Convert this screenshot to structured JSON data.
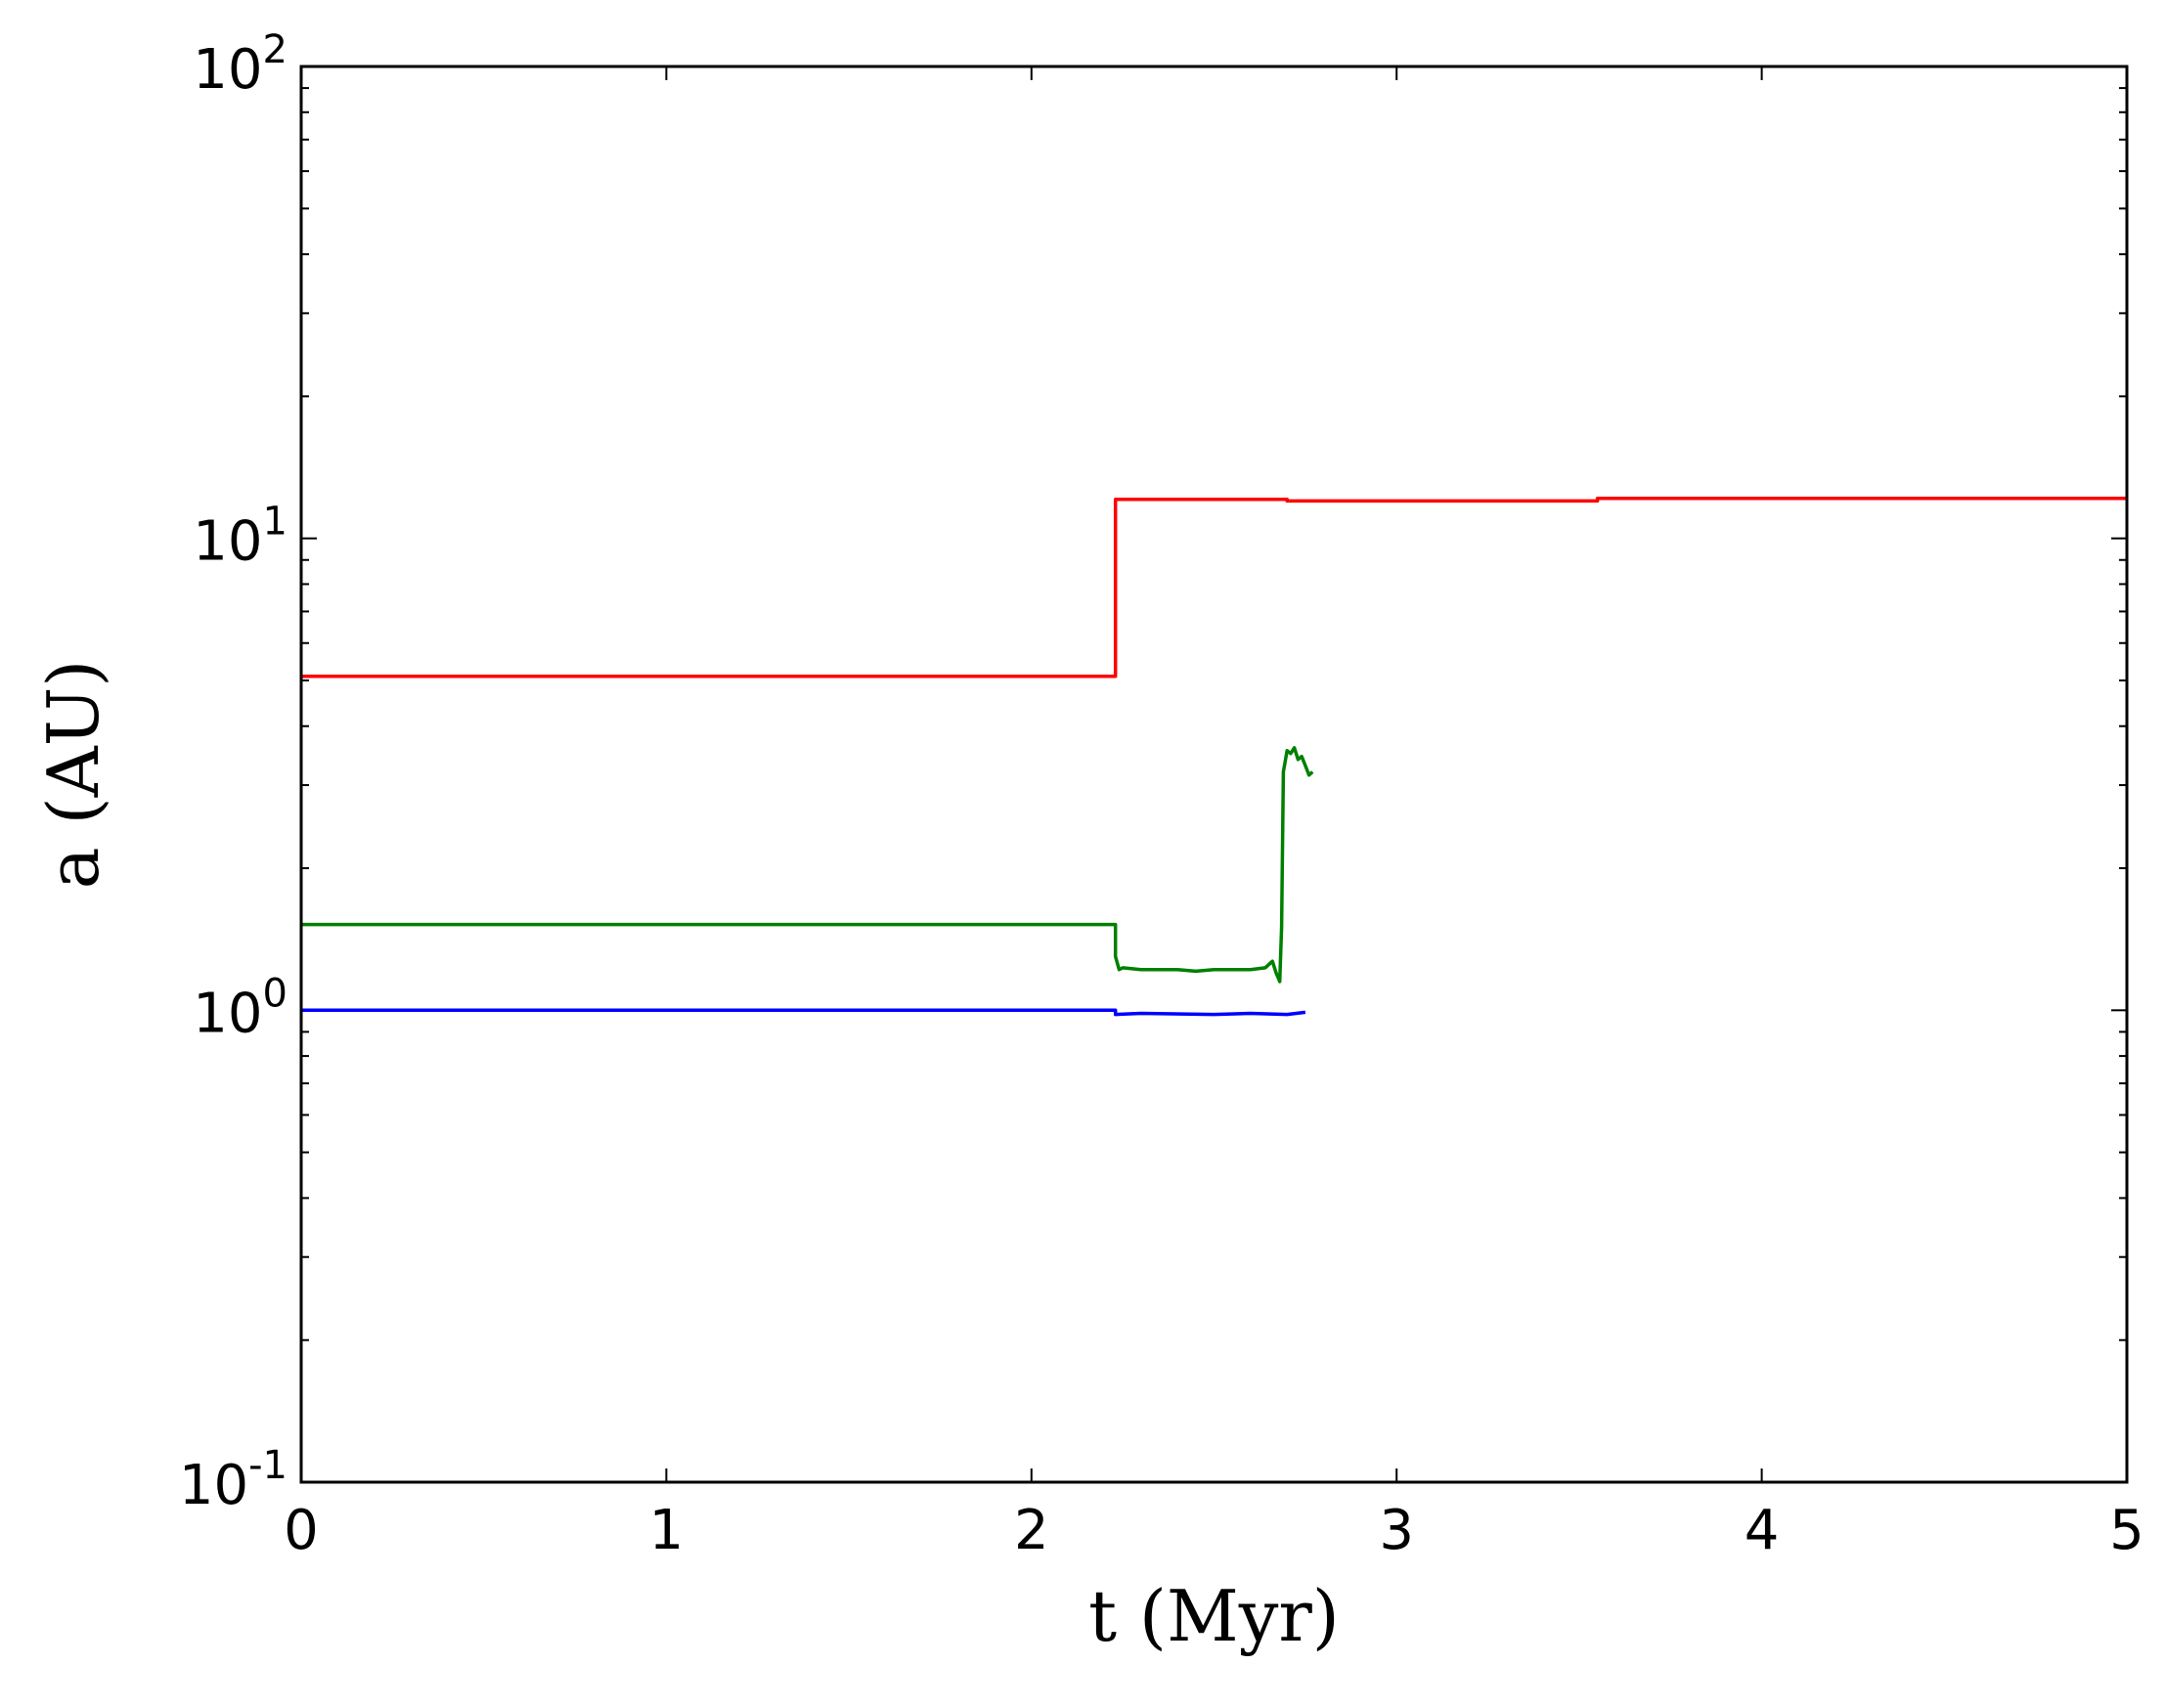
{
  "chart_data": {
    "type": "line",
    "xlabel": "t (Myr)",
    "ylabel": "a (AU)",
    "xlim": [
      0,
      5
    ],
    "ylim": [
      0.1,
      100
    ],
    "yscale": "log",
    "grid": false,
    "x_ticks": [
      {
        "value": 0,
        "label": "0"
      },
      {
        "value": 1,
        "label": "1"
      },
      {
        "value": 2,
        "label": "2"
      },
      {
        "value": 3,
        "label": "3"
      },
      {
        "value": 4,
        "label": "4"
      },
      {
        "value": 5,
        "label": "5"
      }
    ],
    "y_ticks": [
      {
        "value": 0.1,
        "base": "10",
        "exp": "-1"
      },
      {
        "value": 1,
        "base": "10",
        "exp": "0"
      },
      {
        "value": 10,
        "base": "10",
        "exp": "1"
      },
      {
        "value": 100,
        "base": "10",
        "exp": "2"
      }
    ],
    "series": [
      {
        "color": "#ff0000",
        "x": [
          0,
          2.23,
          2.23,
          2.7,
          2.7,
          3.55,
          3.55,
          5.0
        ],
        "y": [
          5.1,
          5.1,
          12.1,
          12.1,
          12.0,
          12.0,
          12.15,
          12.15
        ]
      },
      {
        "color": "#008000",
        "x": [
          0,
          2.23,
          2.23,
          2.24,
          2.25,
          2.3,
          2.4,
          2.45,
          2.5,
          2.55,
          2.6,
          2.64,
          2.66,
          2.67,
          2.68,
          2.685,
          2.69,
          2.7,
          2.71,
          2.72,
          2.73,
          2.74,
          2.75,
          2.76,
          2.77
        ],
        "y": [
          1.52,
          1.52,
          1.3,
          1.22,
          1.23,
          1.22,
          1.22,
          1.21,
          1.22,
          1.22,
          1.22,
          1.23,
          1.27,
          1.2,
          1.15,
          1.5,
          3.2,
          3.55,
          3.5,
          3.6,
          3.4,
          3.45,
          3.3,
          3.15,
          3.2
        ]
      },
      {
        "color": "#0000ff",
        "x": [
          0,
          2.23,
          2.23,
          2.3,
          2.5,
          2.6,
          2.7,
          2.75
        ],
        "y": [
          1.0,
          1.0,
          0.98,
          0.985,
          0.98,
          0.985,
          0.98,
          0.99
        ]
      }
    ]
  }
}
